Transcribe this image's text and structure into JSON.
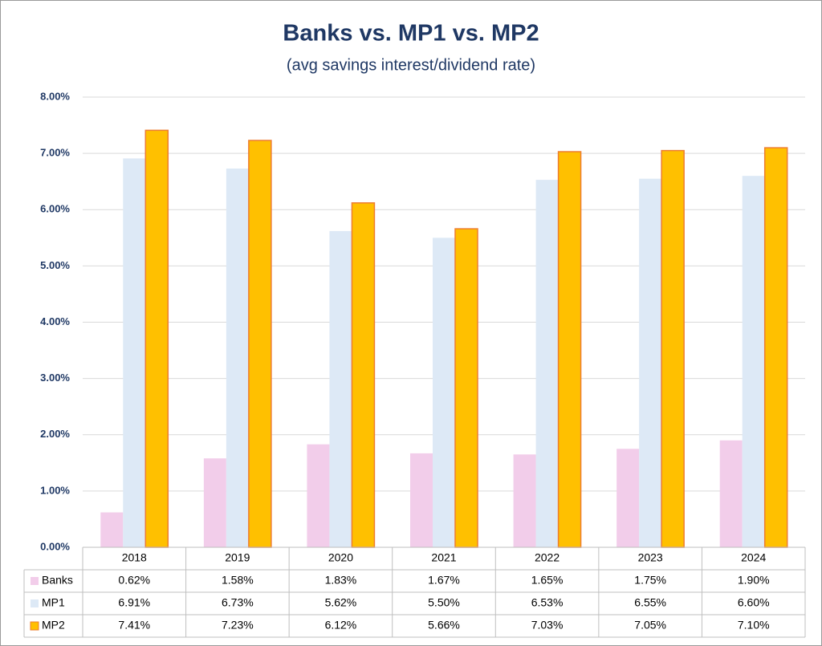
{
  "chart_data": {
    "type": "bar",
    "title": "Banks vs. MP1 vs. MP2",
    "subtitle": "(avg savings interest/dividend rate)",
    "categories": [
      "2018",
      "2019",
      "2020",
      "2021",
      "2022",
      "2023",
      "2024"
    ],
    "series": [
      {
        "name": "Banks",
        "color": "#f2cdea",
        "values": [
          0.62,
          1.58,
          1.83,
          1.67,
          1.65,
          1.75,
          1.9
        ],
        "value_labels": [
          "0.62%",
          "1.58%",
          "1.83%",
          "1.67%",
          "1.65%",
          "1.75%",
          "1.90%"
        ]
      },
      {
        "name": "MP1",
        "color": "#dde9f6",
        "values": [
          6.91,
          6.73,
          5.62,
          5.5,
          6.53,
          6.55,
          6.6
        ],
        "value_labels": [
          "6.91%",
          "6.73%",
          "5.62%",
          "5.50%",
          "6.53%",
          "6.55%",
          "6.60%"
        ]
      },
      {
        "name": "MP2",
        "color": "#ffc000",
        "edgecolor": "#ed7d31",
        "values": [
          7.41,
          7.23,
          6.12,
          5.66,
          7.03,
          7.05,
          7.1
        ],
        "value_labels": [
          "7.41%",
          "7.23%",
          "6.12%",
          "5.66%",
          "7.03%",
          "7.05%",
          "7.10%"
        ]
      }
    ],
    "ylim": [
      0,
      8
    ],
    "yticks": [
      {
        "value": 0,
        "label": "0.00%"
      },
      {
        "value": 1,
        "label": "1.00%"
      },
      {
        "value": 2,
        "label": "2.00%"
      },
      {
        "value": 3,
        "label": "3.00%"
      },
      {
        "value": 4,
        "label": "4.00%"
      },
      {
        "value": 5,
        "label": "5.00%"
      },
      {
        "value": 6,
        "label": "6.00%"
      },
      {
        "value": 7,
        "label": "7.00%"
      },
      {
        "value": 8,
        "label": "8.00%"
      }
    ],
    "grid": true,
    "data_table": true
  }
}
